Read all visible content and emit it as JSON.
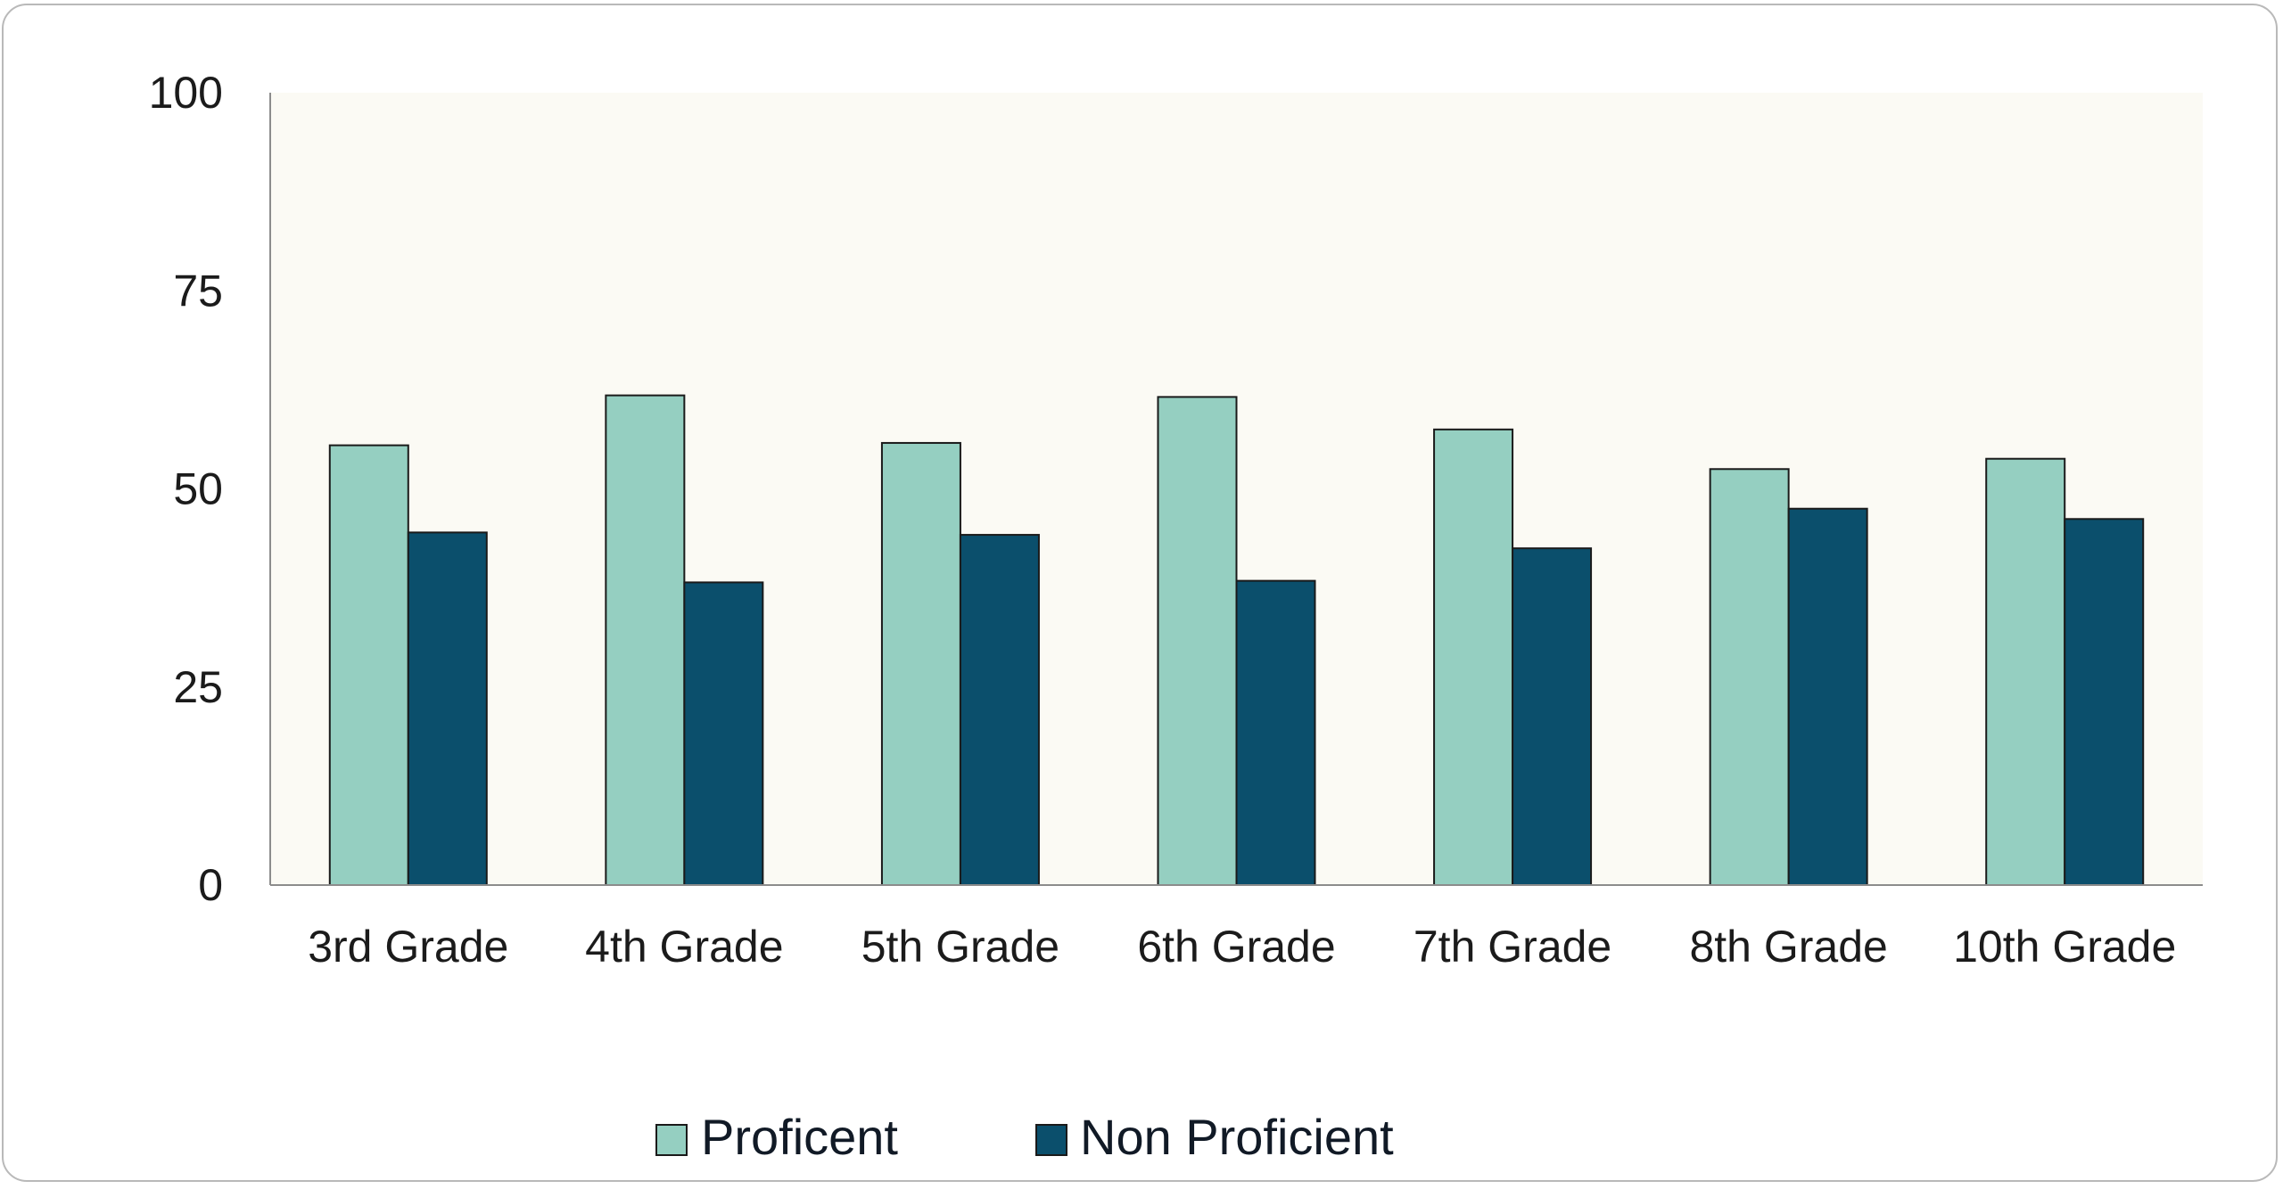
{
  "chart_data": {
    "type": "bar",
    "categories": [
      "3rd Grade",
      "4th Grade",
      "5th Grade",
      "6th Grade",
      "7th Grade",
      "8th Grade",
      "10th Grade"
    ],
    "series": [
      {
        "name": "Proficent",
        "color": "#95cfc1",
        "values": [
          55.5,
          61.8,
          55.8,
          61.6,
          57.5,
          52.5,
          53.8
        ]
      },
      {
        "name": "Non Proficient",
        "color": "#0b4f6c",
        "values": [
          44.5,
          38.2,
          44.2,
          38.4,
          42.5,
          47.5,
          46.2
        ]
      }
    ],
    "yticks": [
      "0",
      "25",
      "50",
      "75",
      "100"
    ],
    "ylim": [
      0,
      100
    ],
    "title": "",
    "xlabel": "",
    "ylabel": "",
    "grid": false,
    "legend_position": "bottom",
    "plot_background": "#fbfaf4"
  }
}
